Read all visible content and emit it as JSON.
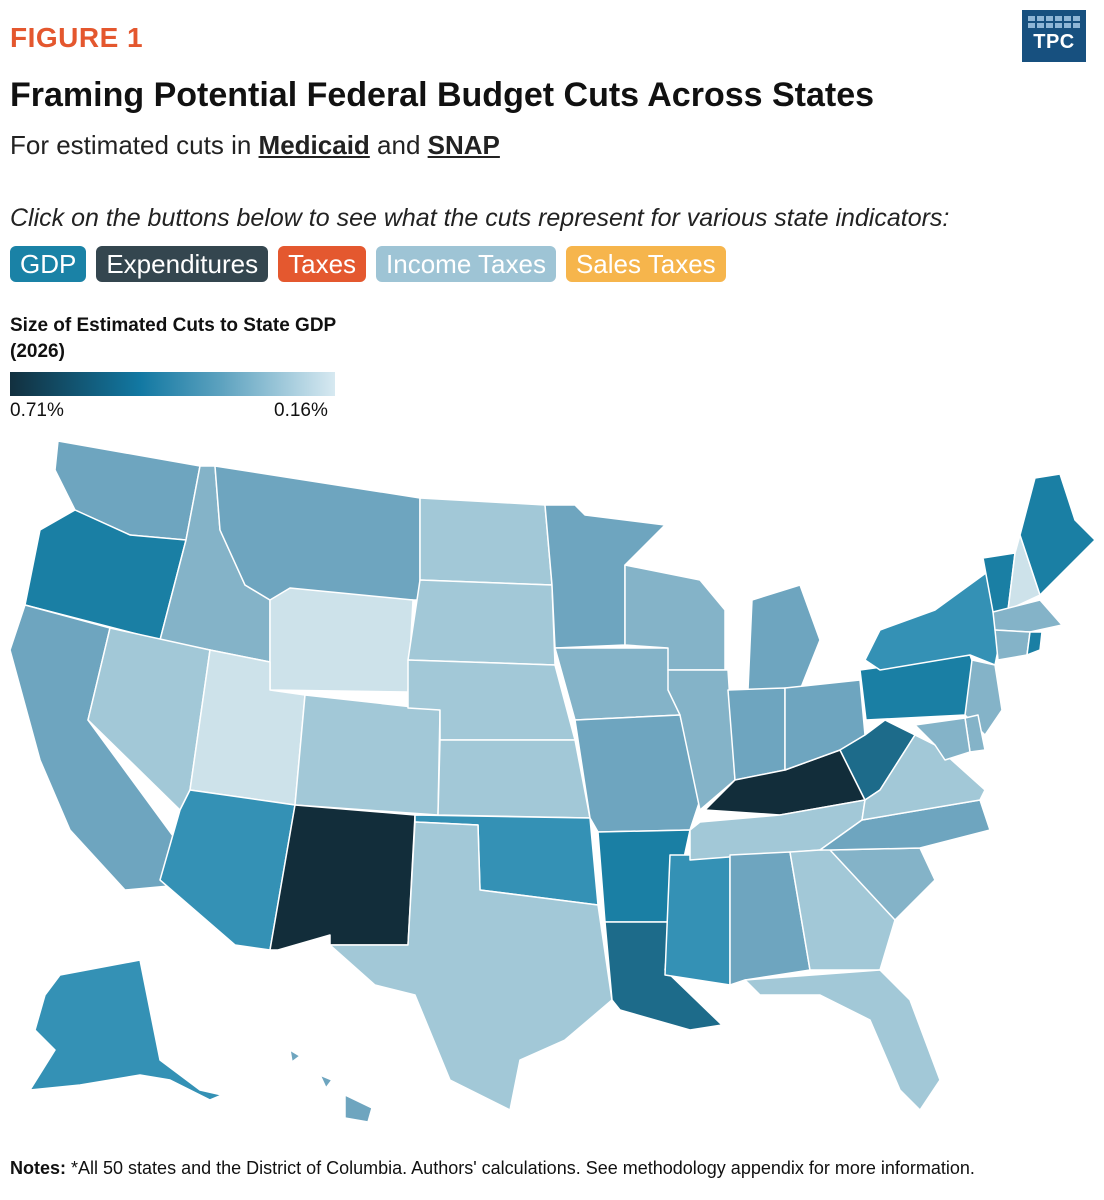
{
  "figure_label": "FIGURE 1",
  "logo_text": "TPC",
  "title": "Framing Potential Federal Budget Cuts Across States",
  "subtitle": {
    "prefix": "For estimated cuts in ",
    "medicaid": "Medicaid",
    "and": " and ",
    "snap": "SNAP"
  },
  "instruction": "Click on the buttons below to see what the cuts represent for various state indicators:",
  "buttons": [
    {
      "label": "GDP",
      "color": "#1a82a6"
    },
    {
      "label": "Expenditures",
      "color": "#34464f"
    },
    {
      "label": "Taxes",
      "color": "#e4582f"
    },
    {
      "label": "Income Taxes",
      "color": "#9ec4d5"
    },
    {
      "label": "Sales Taxes",
      "color": "#f6b54c"
    }
  ],
  "legend": {
    "title": "Size of Estimated Cuts to State GDP (2026)",
    "min_label": "0.71%",
    "max_label": "0.16%"
  },
  "notes": {
    "label": "Notes:",
    "text": " *All 50 states and the District of Columbia. Authors' calculations. See methodology appendix for more information."
  },
  "map": {
    "colors": {
      "darkest": "#122d3a",
      "dark": "#1d6b8a",
      "strong": "#1a7fa4",
      "medium_strong": "#3491b5",
      "medium": "#6ea5bf",
      "light_medium": "#84b3c8",
      "light": "#a2c8d7",
      "lightest": "#cde2ea"
    },
    "states": [
      {
        "id": "WA",
        "tone": "medium"
      },
      {
        "id": "OR",
        "tone": "strong"
      },
      {
        "id": "CA",
        "tone": "medium"
      },
      {
        "id": "ID",
        "tone": "light_medium"
      },
      {
        "id": "NV",
        "tone": "light"
      },
      {
        "id": "MT",
        "tone": "medium"
      },
      {
        "id": "WY",
        "tone": "lightest"
      },
      {
        "id": "UT",
        "tone": "lightest"
      },
      {
        "id": "AZ",
        "tone": "medium_strong"
      },
      {
        "id": "CO",
        "tone": "light"
      },
      {
        "id": "NM",
        "tone": "darkest"
      },
      {
        "id": "ND",
        "tone": "light"
      },
      {
        "id": "SD",
        "tone": "light"
      },
      {
        "id": "NE",
        "tone": "light"
      },
      {
        "id": "KS",
        "tone": "light"
      },
      {
        "id": "OK",
        "tone": "medium_strong"
      },
      {
        "id": "TX",
        "tone": "light"
      },
      {
        "id": "MN",
        "tone": "medium"
      },
      {
        "id": "IA",
        "tone": "light_medium"
      },
      {
        "id": "MO",
        "tone": "medium"
      },
      {
        "id": "AR",
        "tone": "strong"
      },
      {
        "id": "LA",
        "tone": "dark"
      },
      {
        "id": "WI",
        "tone": "light_medium"
      },
      {
        "id": "IL",
        "tone": "light_medium"
      },
      {
        "id": "MS",
        "tone": "medium_strong"
      },
      {
        "id": "MI",
        "tone": "medium"
      },
      {
        "id": "IN",
        "tone": "medium"
      },
      {
        "id": "KY",
        "tone": "darkest"
      },
      {
        "id": "TN",
        "tone": "light"
      },
      {
        "id": "AL",
        "tone": "medium"
      },
      {
        "id": "OH",
        "tone": "medium"
      },
      {
        "id": "WV",
        "tone": "dark"
      },
      {
        "id": "GA",
        "tone": "light"
      },
      {
        "id": "FL",
        "tone": "light"
      },
      {
        "id": "SC",
        "tone": "light_medium"
      },
      {
        "id": "NC",
        "tone": "medium"
      },
      {
        "id": "VA",
        "tone": "light"
      },
      {
        "id": "PA",
        "tone": "strong"
      },
      {
        "id": "NY",
        "tone": "medium_strong"
      },
      {
        "id": "VT",
        "tone": "strong"
      },
      {
        "id": "NH",
        "tone": "lightest"
      },
      {
        "id": "ME",
        "tone": "strong"
      },
      {
        "id": "MA",
        "tone": "light_medium"
      },
      {
        "id": "CT",
        "tone": "light_medium"
      },
      {
        "id": "RI",
        "tone": "strong"
      },
      {
        "id": "NJ",
        "tone": "light_medium"
      },
      {
        "id": "DE",
        "tone": "light_medium"
      },
      {
        "id": "MD",
        "tone": "light_medium"
      },
      {
        "id": "AK",
        "tone": "medium_strong"
      },
      {
        "id": "HI",
        "tone": "medium"
      }
    ]
  }
}
